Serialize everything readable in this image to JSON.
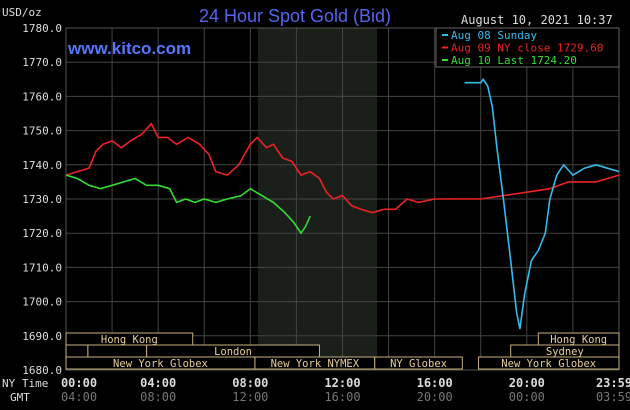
{
  "chart_data": {
    "type": "line",
    "title": "24 Hour Spot Gold (Bid)",
    "ylabel": "USD/oz",
    "timestamp": "August 10, 2021 10:37",
    "watermark": "www.kitco.com",
    "ylim": [
      1680,
      1780
    ],
    "yticks": [
      "1780.0",
      "1770.0",
      "1760.0",
      "1750.0",
      "1740.0",
      "1730.0",
      "1720.0",
      "1710.0",
      "1700.0",
      "1690.0",
      "1680.0"
    ],
    "xrow_labels": {
      "ny": "NY Time",
      "gmt": "GMT"
    },
    "xticks_ny": [
      "00:00",
      "04:00",
      "08:00",
      "12:00",
      "16:00",
      "20:00",
      "23:59"
    ],
    "xticks_gmt": [
      "04:00",
      "08:00",
      "12:00",
      "16:00",
      "20:00",
      "00:00",
      "03:59"
    ],
    "highlight_hours": [
      8.33,
      13.5
    ],
    "legend": [
      {
        "label": "Aug 08 Sunday",
        "color": "#33bbee"
      },
      {
        "label": "Aug 09 NY close 1729.60",
        "color": "#ee2222"
      },
      {
        "label": "Aug 10 Last 1724.20",
        "color": "#33dd33"
      }
    ],
    "series": [
      {
        "name": "Aug 09 NY close",
        "color": "#ee2222",
        "points": [
          [
            0,
            1737
          ],
          [
            0.5,
            1738
          ],
          [
            1,
            1739
          ],
          [
            1.3,
            1744
          ],
          [
            1.6,
            1746
          ],
          [
            2,
            1747
          ],
          [
            2.4,
            1745
          ],
          [
            2.8,
            1747
          ],
          [
            3.3,
            1749
          ],
          [
            3.7,
            1752
          ],
          [
            4,
            1748
          ],
          [
            4.4,
            1748
          ],
          [
            4.8,
            1746
          ],
          [
            5.3,
            1748
          ],
          [
            5.8,
            1746
          ],
          [
            6.2,
            1743
          ],
          [
            6.5,
            1738
          ],
          [
            7,
            1737
          ],
          [
            7.5,
            1740
          ],
          [
            8,
            1746
          ],
          [
            8.3,
            1748
          ],
          [
            8.7,
            1745
          ],
          [
            9,
            1746
          ],
          [
            9.4,
            1742
          ],
          [
            9.8,
            1741
          ],
          [
            10.2,
            1737
          ],
          [
            10.6,
            1738
          ],
          [
            11,
            1736
          ],
          [
            11.3,
            1732
          ],
          [
            11.6,
            1730
          ],
          [
            12,
            1731
          ],
          [
            12.4,
            1728
          ],
          [
            12.8,
            1727
          ],
          [
            13.3,
            1726
          ],
          [
            13.8,
            1727
          ],
          [
            14.3,
            1727
          ],
          [
            14.8,
            1730
          ],
          [
            15.3,
            1729
          ],
          [
            16,
            1730
          ],
          [
            17,
            1730
          ],
          [
            18,
            1730
          ],
          [
            19,
            1731
          ],
          [
            20,
            1732
          ],
          [
            21,
            1733
          ],
          [
            21.8,
            1735
          ],
          [
            23,
            1735
          ],
          [
            24,
            1737
          ]
        ]
      },
      {
        "name": "Aug 10 Last",
        "color": "#33dd33",
        "points": [
          [
            0,
            1737
          ],
          [
            0.5,
            1736
          ],
          [
            1,
            1734
          ],
          [
            1.5,
            1733
          ],
          [
            2,
            1734
          ],
          [
            2.5,
            1735
          ],
          [
            3,
            1736
          ],
          [
            3.5,
            1734
          ],
          [
            4,
            1734
          ],
          [
            4.5,
            1733
          ],
          [
            4.8,
            1729
          ],
          [
            5.2,
            1730
          ],
          [
            5.6,
            1729
          ],
          [
            6,
            1730
          ],
          [
            6.5,
            1729
          ],
          [
            7,
            1730
          ],
          [
            7.6,
            1731
          ],
          [
            8,
            1733
          ],
          [
            8.5,
            1731
          ],
          [
            9,
            1729
          ],
          [
            9.5,
            1726
          ],
          [
            9.9,
            1723
          ],
          [
            10.2,
            1720
          ],
          [
            10.4,
            1722
          ],
          [
            10.6,
            1725
          ]
        ]
      },
      {
        "name": "Aug 08 Sunday",
        "color": "#33bbee",
        "points": [
          [
            17.3,
            1764
          ],
          [
            18,
            1764
          ],
          [
            18.1,
            1765
          ],
          [
            18.3,
            1763
          ],
          [
            18.5,
            1757
          ],
          [
            18.7,
            1745
          ],
          [
            19,
            1729
          ],
          [
            19.3,
            1712
          ],
          [
            19.55,
            1697
          ],
          [
            19.7,
            1692
          ],
          [
            19.9,
            1702
          ],
          [
            20.2,
            1712
          ],
          [
            20.5,
            1715
          ],
          [
            20.8,
            1720
          ],
          [
            21,
            1730
          ],
          [
            21.3,
            1737
          ],
          [
            21.6,
            1740
          ],
          [
            22,
            1737
          ],
          [
            22.5,
            1739
          ],
          [
            23,
            1740
          ],
          [
            23.5,
            1739
          ],
          [
            24,
            1738
          ]
        ]
      }
    ],
    "sessions": [
      {
        "label": "Hong Kong",
        "row": 0,
        "start": 0,
        "end": 5.5,
        "show": true
      },
      {
        "label": "Hong Kong",
        "row": 0,
        "start": 20.5,
        "end": 24,
        "show": true
      },
      {
        "label": "",
        "row": 1,
        "start": 0,
        "end": 0.95,
        "show": false
      },
      {
        "label": "",
        "row": 1,
        "start": 0.95,
        "end": 3.5,
        "show": false
      },
      {
        "label": "London",
        "row": 1,
        "start": 3.5,
        "end": 11,
        "show": true
      },
      {
        "label": "Sydney",
        "row": 1,
        "start": 19.3,
        "end": 24,
        "show": true
      },
      {
        "label": "New York Globex",
        "row": 2,
        "start": 0,
        "end": 8.2,
        "show": true
      },
      {
        "label": "New York NYMEX",
        "row": 2,
        "start": 8.2,
        "end": 13.4,
        "show": true
      },
      {
        "label": "NY Globex",
        "row": 2,
        "start": 13.4,
        "end": 17.2,
        "show": true
      },
      {
        "label": "New York Globex",
        "row": 2,
        "start": 17.9,
        "end": 24,
        "show": true
      }
    ]
  }
}
